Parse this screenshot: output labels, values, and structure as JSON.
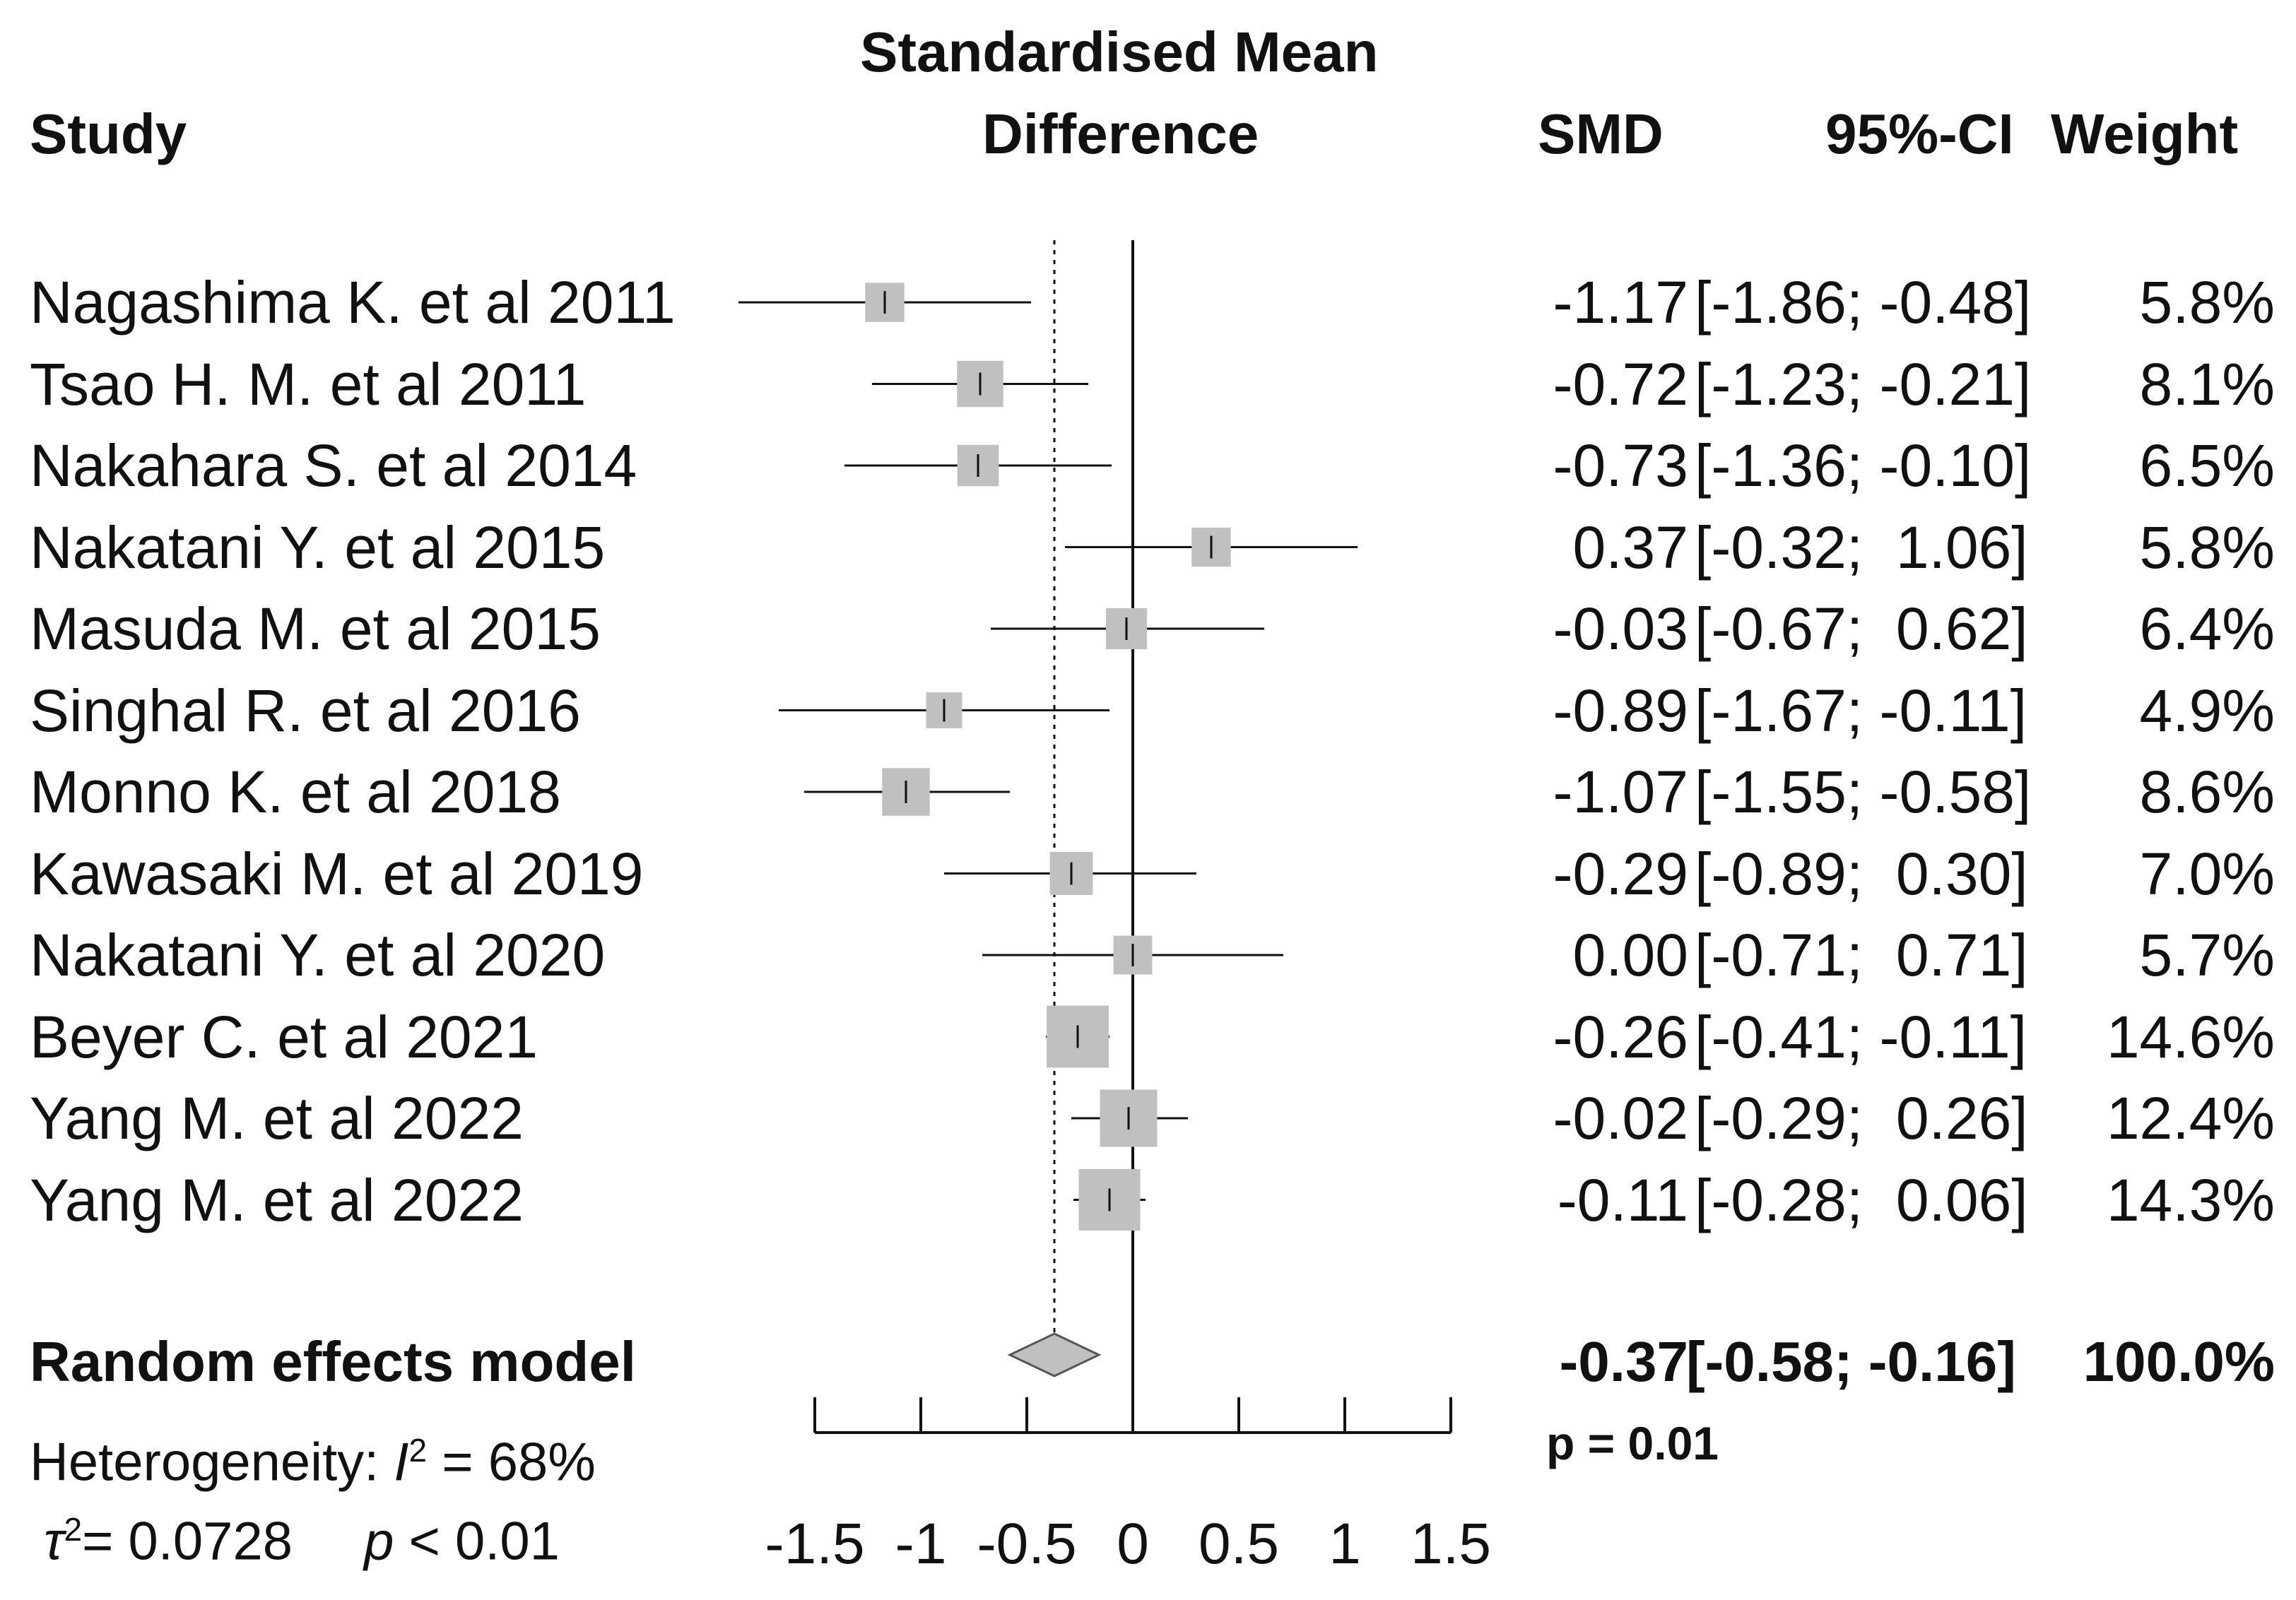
{
  "chart_data": {
    "type": "forest",
    "header": {
      "study": "Study",
      "plot_title_line1": "Standardised Mean",
      "plot_title_line2": "Difference",
      "smd": "SMD",
      "ci": "95%-CI",
      "weight": "Weight"
    },
    "studies": [
      {
        "name": "Nagashima K. et al 2011",
        "smd": -1.17,
        "ci_low": -1.86,
        "ci_high": -0.48,
        "smd_text": "-1.17",
        "ci_text": "[-1.86; -0.48]",
        "weight": 5.8,
        "weight_text": "5.8%"
      },
      {
        "name": "Tsao H. M. et al 2011",
        "smd": -0.72,
        "ci_low": -1.23,
        "ci_high": -0.21,
        "smd_text": "-0.72",
        "ci_text": "[-1.23; -0.21]",
        "weight": 8.1,
        "weight_text": "8.1%"
      },
      {
        "name": "Nakahara S. et al 2014",
        "smd": -0.73,
        "ci_low": -1.36,
        "ci_high": -0.1,
        "smd_text": "-0.73",
        "ci_text": "[-1.36; -0.10]",
        "weight": 6.5,
        "weight_text": "6.5%"
      },
      {
        "name": "Nakatani Y. et al 2015",
        "smd": 0.37,
        "ci_low": -0.32,
        "ci_high": 1.06,
        "smd_text": "0.37",
        "ci_text": "[-0.32;  1.06]",
        "weight": 5.8,
        "weight_text": "5.8%"
      },
      {
        "name": "Masuda M. et al 2015",
        "smd": -0.03,
        "ci_low": -0.67,
        "ci_high": 0.62,
        "smd_text": "-0.03",
        "ci_text": "[-0.67;  0.62]",
        "weight": 6.4,
        "weight_text": "6.4%"
      },
      {
        "name": "Singhal R. et al 2016",
        "smd": -0.89,
        "ci_low": -1.67,
        "ci_high": -0.11,
        "smd_text": "-0.89",
        "ci_text": "[-1.67; -0.11]",
        "weight": 4.9,
        "weight_text": "4.9%"
      },
      {
        "name": "Monno K. et al 2018",
        "smd": -1.07,
        "ci_low": -1.55,
        "ci_high": -0.58,
        "smd_text": "-1.07",
        "ci_text": "[-1.55; -0.58]",
        "weight": 8.6,
        "weight_text": "8.6%"
      },
      {
        "name": "Kawasaki M. et al 2019",
        "smd": -0.29,
        "ci_low": -0.89,
        "ci_high": 0.3,
        "smd_text": "-0.29",
        "ci_text": "[-0.89;  0.30]",
        "weight": 7.0,
        "weight_text": "7.0%"
      },
      {
        "name": "Nakatani Y. et al 2020",
        "smd": 0.0,
        "ci_low": -0.71,
        "ci_high": 0.71,
        "smd_text": "0.00",
        "ci_text": "[-0.71;  0.71]",
        "weight": 5.7,
        "weight_text": "5.7%"
      },
      {
        "name": "Beyer C. et al 2021",
        "smd": -0.26,
        "ci_low": -0.41,
        "ci_high": -0.11,
        "smd_text": "-0.26",
        "ci_text": "[-0.41; -0.11]",
        "weight": 14.6,
        "weight_text": "14.6%"
      },
      {
        "name": "Yang M. et al 2022",
        "smd": -0.02,
        "ci_low": -0.29,
        "ci_high": 0.26,
        "smd_text": "-0.02",
        "ci_text": "[-0.29;  0.26]",
        "weight": 12.4,
        "weight_text": "12.4%"
      },
      {
        "name": "Yang M. et al 2022",
        "smd": -0.11,
        "ci_low": -0.28,
        "ci_high": 0.06,
        "smd_text": "-0.11",
        "ci_text": "[-0.28;  0.06]",
        "weight": 14.3,
        "weight_text": "14.3%"
      }
    ],
    "pooled": {
      "label": "Random effects model",
      "smd": -0.37,
      "ci_low": -0.58,
      "ci_high": -0.16,
      "smd_text": "-0.37",
      "ci_text": "[-0.58; -0.16]",
      "weight_text": "100.0%",
      "p_text": "p = 0.01"
    },
    "heterogeneity": {
      "label": "Heterogeneity: ",
      "i2_symbol": "I",
      "i2_sup": "2",
      "i2_value": " = 68%",
      "tau2_symbol": "τ",
      "tau2_sup": "2",
      "tau2_value": "= 0.0728",
      "p_symbol": "p",
      "p_value": " < 0.01"
    },
    "axis": {
      "xlim": [
        -1.5,
        1.5
      ],
      "ticks": [
        -1.5,
        -1,
        -0.5,
        0,
        0.5,
        1,
        1.5
      ],
      "tick_labels": [
        "-1.5",
        "-1",
        "-0.5",
        "0",
        "0.5",
        "1",
        "1.5"
      ],
      "reference_line": 0
    },
    "colors": {
      "box": "#c0c0c0",
      "diamond": "#c0c0c0",
      "line": "#111111"
    }
  }
}
